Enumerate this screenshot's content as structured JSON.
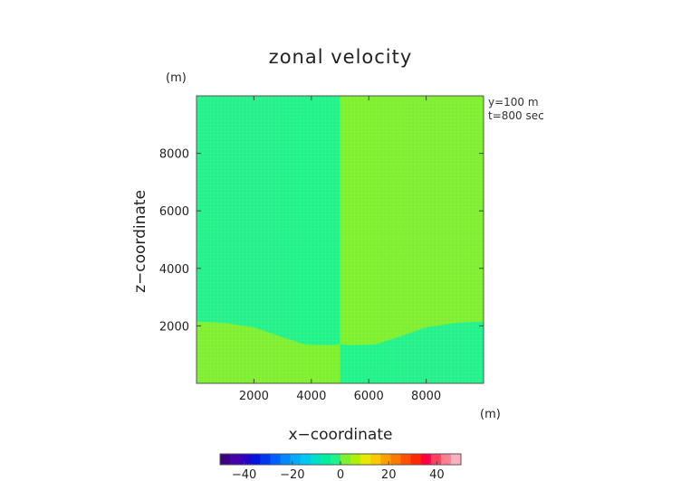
{
  "chart_data": {
    "type": "heatmap",
    "title": "zonal velocity",
    "xlabel": "x−coordinate",
    "ylabel": "z−coordinate",
    "x_unit": "(m)",
    "y_unit": "(m)",
    "xlim": [
      0,
      10000
    ],
    "ylim": [
      0,
      10000
    ],
    "xticks": [
      "2000",
      "4000",
      "6000",
      "8000"
    ],
    "yticks": [
      "2000",
      "4000",
      "6000",
      "8000"
    ],
    "annotations": [
      "y=100 m",
      "t=800 sec"
    ],
    "regions": [
      {
        "side": "x < 5000, above interface",
        "value": 0,
        "color": "#22f28a"
      },
      {
        "side": "x > 5000, above interface",
        "value": 3,
        "color": "#7ef02e"
      },
      {
        "side": "x < 5000, below interface",
        "value": 3,
        "color": "#7ef02e"
      },
      {
        "side": "x > 5000, below interface",
        "value": 0,
        "color": "#22f28a"
      }
    ],
    "interface_left": [
      [
        0,
        2150
      ],
      [
        1000,
        2100
      ],
      [
        2000,
        1950
      ],
      [
        3000,
        1600
      ],
      [
        3800,
        1350
      ],
      [
        4700,
        1330
      ],
      [
        5000,
        1360
      ]
    ],
    "interface_right": [
      [
        5000,
        1360
      ],
      [
        5300,
        1330
      ],
      [
        6200,
        1350
      ],
      [
        7000,
        1600
      ],
      [
        8000,
        1950
      ],
      [
        9000,
        2100
      ],
      [
        10000,
        2150
      ]
    ],
    "colorbar": {
      "range": [
        -50,
        50
      ],
      "tick_labels": [
        "−40",
        "−20",
        "0",
        "20",
        "40"
      ],
      "tick_values": [
        -40,
        -20,
        0,
        20,
        40
      ],
      "colors": [
        "#3a0080",
        "#4800a8",
        "#2a00c8",
        "#0014e0",
        "#0038f0",
        "#0060ff",
        "#0088ff",
        "#00aaff",
        "#00c8f0",
        "#00e0c8",
        "#00f0a0",
        "#22f28a",
        "#7ef02e",
        "#b0f000",
        "#e8e800",
        "#ffc800",
        "#ffa000",
        "#ff7800",
        "#ff5000",
        "#ff2800",
        "#ff0040",
        "#ff4060",
        "#ff8090",
        "#ffb0c0"
      ]
    }
  }
}
